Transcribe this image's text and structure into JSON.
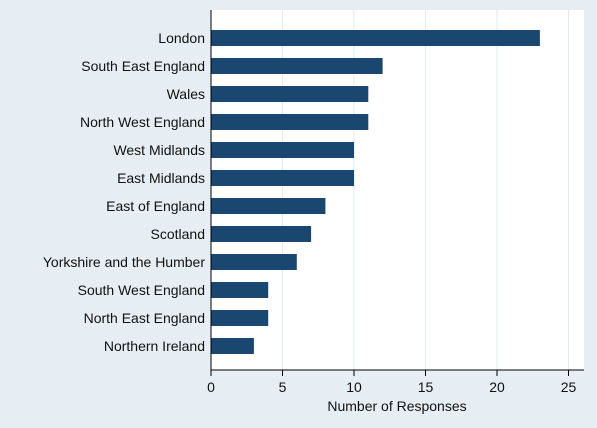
{
  "chart_data": {
    "type": "bar",
    "orientation": "horizontal",
    "categories": [
      "London",
      "South East England",
      "Wales",
      "North West England",
      "West Midlands",
      "East Midlands",
      "East of England",
      "Scotland",
      "Yorkshire and the Humber",
      "South West England",
      "North East England",
      "Northern Ireland"
    ],
    "values": [
      23,
      12,
      11,
      11,
      10,
      10,
      8,
      7,
      6,
      4,
      4,
      3
    ],
    "xlabel": "Number of Responses",
    "ylabel": "",
    "xlim": [
      0,
      26
    ],
    "xticks": [
      0,
      5,
      10,
      15,
      20,
      25
    ],
    "grid": true,
    "colors": {
      "bar": "#1a476f",
      "background": "#e7eef3",
      "plot_background": "#ffffff",
      "grid": "#e3eaef"
    }
  }
}
